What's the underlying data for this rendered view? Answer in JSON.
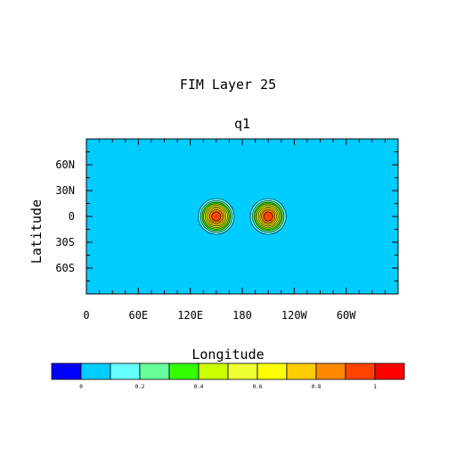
{
  "title": "FIM Layer 25",
  "subtitle": "q1",
  "xlabel": "Longitude",
  "ylabel": "Latitude",
  "x_tick_labels": [
    "0",
    "60E",
    "120E",
    "180",
    "120W",
    "60W"
  ],
  "y_tick_labels": [
    "60N",
    "30N",
    "0",
    "30S",
    "60S"
  ],
  "colorbar": {
    "label_values": [
      "0",
      "0.2",
      "0.4",
      "0.6",
      "0.8",
      "1"
    ],
    "colors": [
      "#0000ff",
      "#00ccff",
      "#66ffff",
      "#66ff99",
      "#33ff00",
      "#ccff00",
      "#eeff33",
      "#ffff00",
      "#ffcc00",
      "#ff8800",
      "#ff4400",
      "#ff0000"
    ]
  },
  "chart_data": {
    "type": "heatmap",
    "title": "FIM Layer 25",
    "subtitle": "q1",
    "xlabel": "Longitude",
    "ylabel": "Latitude",
    "xlim": [
      0,
      360
    ],
    "ylim": [
      -90,
      90
    ],
    "x_ticks": [
      0,
      60,
      120,
      180,
      240,
      300
    ],
    "y_ticks": [
      60,
      30,
      0,
      -30,
      -60
    ],
    "background_value": 0.05,
    "background_color": "#00ccff",
    "features": [
      {
        "shape": "cosine-bell",
        "lon": 150,
        "lat": 0,
        "peak": 1.0,
        "radius_deg": 26
      },
      {
        "shape": "cosine-bell",
        "lon": 210,
        "lat": 0,
        "peak": 1.0,
        "radius_deg": 26
      }
    ],
    "contour_levels": [
      0.1,
      0.2,
      0.3,
      0.4,
      0.5,
      0.6,
      0.7,
      0.8,
      0.9
    ],
    "fill_levels": [
      0,
      0.1,
      0.2,
      0.3,
      0.4,
      0.5,
      0.6,
      0.7,
      0.8,
      0.9,
      1.0
    ]
  }
}
